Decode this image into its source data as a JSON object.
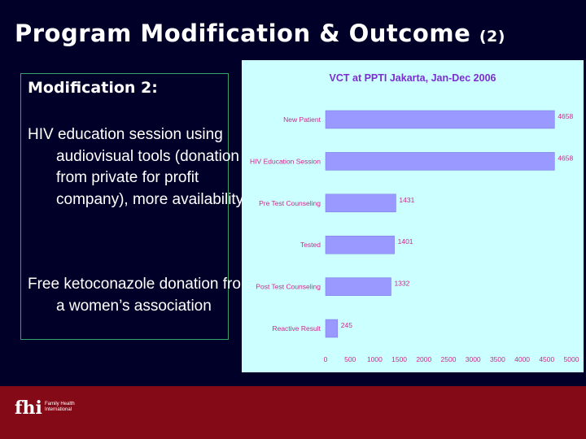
{
  "slide": {
    "title": "Program Modification & Outcome",
    "title_suffix": "(2)"
  },
  "text_box": {
    "heading": "Modification 2:",
    "paragraphs": [
      "HIV education session using audiovisual tools (donation from private for profit company), more availability",
      "Free ketoconazole donation from a women’s association"
    ]
  },
  "colors": {
    "background": "#000028",
    "chart_background": "#ccffff",
    "bar_fill": "#9999ff",
    "chart_title": "#7b2fd0",
    "chart_label": "#cc2a8a",
    "footer": "#840a17"
  },
  "chart_data": {
    "type": "bar",
    "orientation": "horizontal",
    "title": "VCT at PPTI Jakarta, Jan-Dec 2006",
    "categories": [
      "New Patient",
      "HIV Education Session",
      "Pre Test Counseling",
      "Tested",
      "Post Test Counseling",
      "Reactive Result"
    ],
    "values": [
      4658,
      4658,
      1431,
      1401,
      1332,
      245
    ],
    "data_labels": [
      "4658",
      "4658",
      "1431",
      "1401",
      "1332",
      "245"
    ],
    "xlim": [
      0,
      5000
    ],
    "xticks": [
      "0",
      "500",
      "1000",
      "1500",
      "2000",
      "2500",
      "3000",
      "3500",
      "4000",
      "4500",
      "5000"
    ],
    "grid": false,
    "legend": "none"
  },
  "footer": {
    "logo_mark": "fhi",
    "logo_text_lines": [
      "Family Health",
      "International"
    ]
  }
}
